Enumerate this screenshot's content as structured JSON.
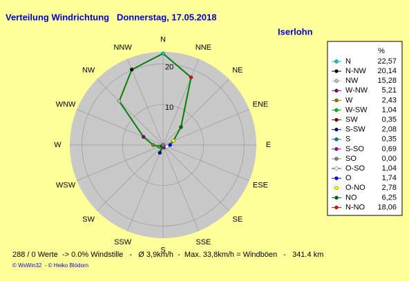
{
  "chart_data": {
    "type": "radar",
    "title": "Verteilung Windrichtung   Donnerstag, 17.05.2018",
    "subtitle": "Iserlohn",
    "compass_labels": [
      "N",
      "NNE",
      "NE",
      "ENE",
      "E",
      "ESE",
      "SE",
      "SSE",
      "S",
      "SSW",
      "SW",
      "WSW",
      "W",
      "WNW",
      "NW",
      "NNW"
    ],
    "legend_header": "%",
    "categories": [
      "N",
      "N-NW",
      "NW",
      "W-NW",
      "W",
      "W-SW",
      "SW",
      "S-SW",
      "S",
      "S-SO",
      "SO",
      "O-SO",
      "O",
      "O-NO",
      "NO",
      "N-NO"
    ],
    "colors": [
      "#00c8c8",
      "#000000",
      "#c0c0c0",
      "#800080",
      "#808000",
      "#00c000",
      "#800000",
      "#000080",
      "#008080",
      "#a000a0",
      "#808080",
      "#ffffff",
      "#0000ff",
      "#ffff00",
      "#006400",
      "#ff0000"
    ],
    "values": [
      22.57,
      20.14,
      15.28,
      5.21,
      2.43,
      1.04,
      0.35,
      2.08,
      0.35,
      0.69,
      0.0,
      1.04,
      1.74,
      2.78,
      6.25,
      18.06
    ],
    "value_labels": [
      "22,57",
      "20,14",
      "15,28",
      "5,21",
      "2,43",
      "1,04",
      "0,35",
      "2,08",
      "0,35",
      "0,69",
      "0,00",
      "1,04",
      "1,74",
      "2,78",
      "6,25",
      "18,06"
    ],
    "line_color": "#008000",
    "rlim": [
      0,
      23
    ],
    "rticks": [
      10,
      20
    ],
    "footer": "288 / 0 Werte  -> 0.0% Windstille   -   Ø 3,9km/h  -  Max. 33,8km/h = Windböen   -   341.4 km",
    "credits": "© WsWin32  - © Heiko Blödorn"
  }
}
